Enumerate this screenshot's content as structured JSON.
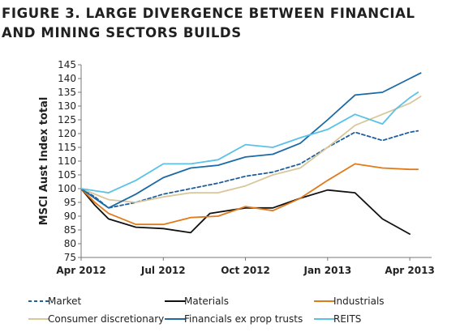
{
  "title_line1": "FIGURE 3. LARGE DIVERGENCE BETWEEN FINANCIAL",
  "title_line2": "AND MINING SECTORS BUILDS",
  "chart_data": {
    "type": "line",
    "title": "FIGURE 3. LARGE DIVERGENCE BETWEEN FINANCIAL AND MINING SECTORS BUILDS",
    "ylabel": "MSCI Aust Index total",
    "xlabel": "",
    "ylim": [
      75,
      145
    ],
    "yticks": [
      75,
      80,
      85,
      90,
      95,
      100,
      105,
      110,
      115,
      120,
      125,
      130,
      135,
      140,
      145
    ],
    "xlim": [
      0,
      12.5
    ],
    "xticks": [
      {
        "value": 0,
        "label": "Apr 2012"
      },
      {
        "value": 3,
        "label": "Jul 2012"
      },
      {
        "value": 6,
        "label": "Oct 2012"
      },
      {
        "value": 9,
        "label": "Jan 2013"
      },
      {
        "value": 12,
        "label": "Apr 2013"
      }
    ],
    "grid": false,
    "legend_position": "bottom",
    "series": [
      {
        "name": "Market",
        "color": "#1f5f9e",
        "dash": "dashed",
        "points": [
          [
            0,
            100
          ],
          [
            0.5,
            97
          ],
          [
            1,
            93
          ],
          [
            1.5,
            94
          ],
          [
            2,
            95
          ],
          [
            3,
            98
          ],
          [
            4,
            100
          ],
          [
            5,
            102
          ],
          [
            6,
            104.5
          ],
          [
            7,
            106
          ],
          [
            8,
            109
          ],
          [
            9,
            115
          ],
          [
            10,
            120.5
          ],
          [
            11,
            117.5
          ],
          [
            12,
            120.5
          ],
          [
            12.3,
            121
          ]
        ]
      },
      {
        "name": "Materials",
        "color": "#111111",
        "dash": "solid",
        "points": [
          [
            0,
            100
          ],
          [
            0.5,
            94
          ],
          [
            1,
            89
          ],
          [
            2,
            86
          ],
          [
            3,
            85.5
          ],
          [
            4,
            84
          ],
          [
            4.7,
            91
          ],
          [
            6,
            93
          ],
          [
            7,
            93
          ],
          [
            8,
            96.5
          ],
          [
            9,
            99.5
          ],
          [
            10,
            98.5
          ],
          [
            11,
            89
          ],
          [
            12,
            83.5
          ]
        ]
      },
      {
        "name": "Industrials",
        "color": "#e07b1c",
        "dash": "solid",
        "points": [
          [
            0,
            100
          ],
          [
            0.5,
            95
          ],
          [
            1,
            91
          ],
          [
            2,
            87
          ],
          [
            3,
            87
          ],
          [
            4,
            89.5
          ],
          [
            5,
            90
          ],
          [
            6,
            93.5
          ],
          [
            7,
            92
          ],
          [
            8,
            96.5
          ],
          [
            9,
            103
          ],
          [
            10,
            109
          ],
          [
            11,
            107.5
          ],
          [
            12,
            107
          ],
          [
            12.3,
            107
          ]
        ]
      },
      {
        "name": "Consumer discretionary",
        "color": "#d8c79a",
        "dash": "solid",
        "points": [
          [
            0,
            100
          ],
          [
            1,
            96
          ],
          [
            2,
            95
          ],
          [
            3,
            97
          ],
          [
            4,
            98.5
          ],
          [
            5,
            98.5
          ],
          [
            6,
            101
          ],
          [
            7,
            105
          ],
          [
            8,
            107.5
          ],
          [
            9,
            115
          ],
          [
            10,
            123
          ],
          [
            11,
            127
          ],
          [
            12,
            131
          ],
          [
            12.4,
            133.5
          ]
        ]
      },
      {
        "name": "Financials ex prop trusts",
        "color": "#1b6aa5",
        "dash": "solid",
        "points": [
          [
            0,
            100
          ],
          [
            1,
            93
          ],
          [
            2,
            98
          ],
          [
            3,
            104
          ],
          [
            4,
            107.5
          ],
          [
            5,
            108.5
          ],
          [
            6,
            111.5
          ],
          [
            7,
            112.5
          ],
          [
            8,
            116.5
          ],
          [
            9,
            125
          ],
          [
            10,
            134
          ],
          [
            11,
            135
          ],
          [
            12,
            140
          ],
          [
            12.4,
            142
          ]
        ]
      },
      {
        "name": "REITS",
        "color": "#5bc2e7",
        "dash": "solid",
        "points": [
          [
            0,
            100
          ],
          [
            1,
            98.5
          ],
          [
            2,
            103
          ],
          [
            3,
            109
          ],
          [
            4,
            109
          ],
          [
            5,
            110.5
          ],
          [
            6,
            116
          ],
          [
            7,
            115
          ],
          [
            8,
            118.5
          ],
          [
            9,
            121.5
          ],
          [
            10,
            127
          ],
          [
            11,
            123.5
          ],
          [
            11.5,
            129
          ],
          [
            12,
            133
          ],
          [
            12.3,
            135
          ]
        ]
      }
    ]
  }
}
